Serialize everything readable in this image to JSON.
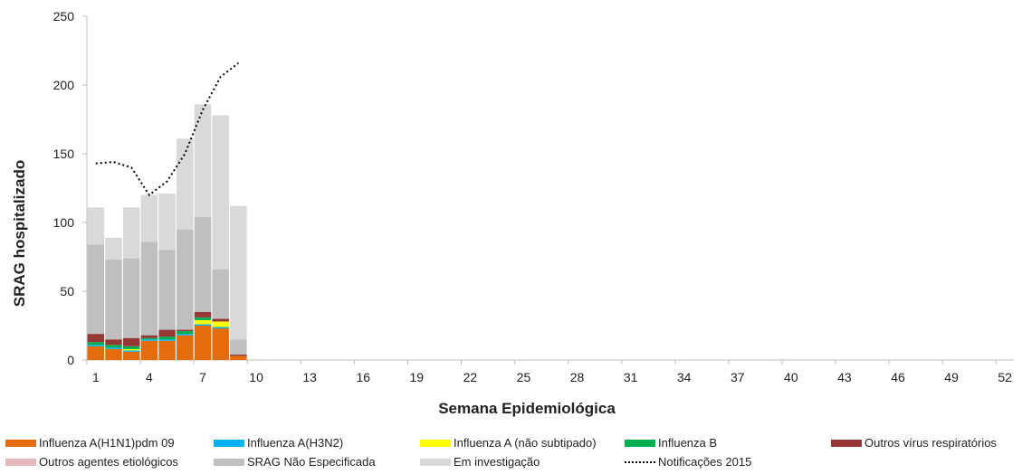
{
  "chart_data": {
    "type": "bar",
    "stacked": true,
    "xlabel": "Semana Epidemiológica",
    "ylabel": "SRAG hospitalizado",
    "ylim": [
      0,
      250
    ],
    "yticks": [
      0,
      50,
      100,
      150,
      200,
      250
    ],
    "x_range": [
      1,
      53
    ],
    "xticks": [
      1,
      4,
      7,
      10,
      13,
      16,
      19,
      22,
      25,
      28,
      31,
      34,
      37,
      40,
      43,
      46,
      49,
      52
    ],
    "grid": false,
    "legend_position": "bottom",
    "weeks": [
      1,
      2,
      3,
      4,
      5,
      6,
      7,
      8,
      9
    ],
    "series": [
      {
        "name": "Influenza A(H1N1)pdm 09",
        "color": "#E46C0A",
        "values": [
          10,
          8,
          6,
          14,
          14,
          18,
          25,
          23,
          3
        ]
      },
      {
        "name": "Influenza A(H3N2)",
        "color": "#00B0F0",
        "values": [
          1,
          1,
          1,
          1,
          1,
          1,
          1,
          1,
          0
        ]
      },
      {
        "name": "Influenza A  (não subtipado)",
        "color": "#FFFF00",
        "values": [
          0,
          0,
          1,
          0,
          0,
          0,
          3,
          4,
          0
        ]
      },
      {
        "name": "Influenza B",
        "color": "#00B050",
        "values": [
          2,
          2,
          2,
          1,
          2,
          2,
          2,
          0,
          0
        ]
      },
      {
        "name": "Outros vírus respiratórios",
        "color": "#953735",
        "values": [
          6,
          4,
          6,
          2,
          5,
          1,
          4,
          2,
          1
        ]
      },
      {
        "name": "Outros agentes etiológicos",
        "color": "#E6B9B8",
        "values": [
          0,
          0,
          0,
          0,
          0,
          0,
          0,
          0,
          0
        ]
      },
      {
        "name": "SRAG Não Especificada",
        "color": "#BFBFBF",
        "values": [
          65,
          58,
          58,
          68,
          58,
          73,
          69,
          36,
          11
        ]
      },
      {
        "name": "Em investigação",
        "color": "#D9D9D9",
        "values": [
          27,
          16,
          37,
          34,
          41,
          66,
          82,
          112,
          97
        ]
      }
    ],
    "line_series": {
      "name": "Notificações 2015",
      "color": "#000000",
      "x": [
        1,
        2,
        3,
        4,
        5,
        6,
        7,
        8,
        9
      ],
      "values": [
        143,
        144,
        140,
        120,
        130,
        150,
        182,
        206,
        216
      ]
    }
  },
  "legend": {
    "items": [
      {
        "label": "Influenza A(H1N1)pdm 09",
        "color": "#E46C0A",
        "kind": "bar"
      },
      {
        "label": "Influenza A(H3N2)",
        "color": "#00B0F0",
        "kind": "bar"
      },
      {
        "label": "Influenza A  (não subtipado)",
        "color": "#FFFF00",
        "kind": "bar"
      },
      {
        "label": "Influenza B",
        "color": "#00B050",
        "kind": "bar"
      },
      {
        "label": "Outros vírus respiratórios",
        "color": "#953735",
        "kind": "bar"
      },
      {
        "label": "Outros agentes etiológicos",
        "color": "#E6B9B8",
        "kind": "bar"
      },
      {
        "label": "SRAG Não Especificada",
        "color": "#BFBFBF",
        "kind": "bar"
      },
      {
        "label": "Em investigação",
        "color": "#D9D9D9",
        "kind": "bar"
      },
      {
        "label": "Notificações 2015",
        "color": "#000000",
        "kind": "line"
      }
    ]
  }
}
